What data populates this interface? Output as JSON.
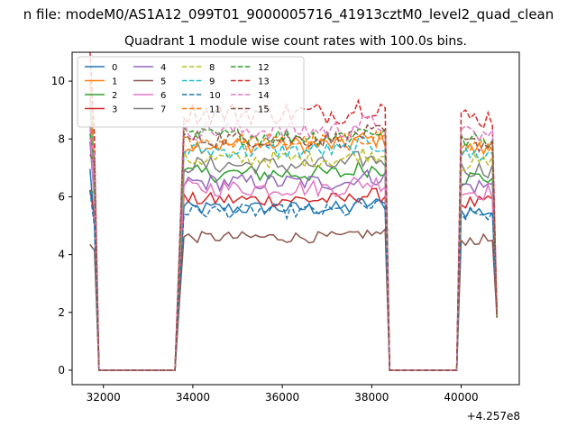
{
  "chart_data": {
    "type": "line",
    "suptitle": "n file: modeM0/AS1A12_099T01_9000005716_41913cztM0_level2_quad_clean",
    "title": "Quadrant 1 module wise count rates with 100.0s bins.",
    "xlabel": "",
    "ylabel": "",
    "x_offset_label": "+4.257e8",
    "xlim": [
      31300,
      41300
    ],
    "ylim": [
      -0.5,
      11
    ],
    "x_ticks": [
      32000,
      34000,
      36000,
      38000,
      40000
    ],
    "y_ticks": [
      0,
      2,
      4,
      6,
      8,
      10
    ],
    "x_tick_labels": [
      "32000",
      "34000",
      "36000",
      "38000",
      "40000"
    ],
    "y_tick_labels": [
      "0",
      "2",
      "4",
      "6",
      "8",
      "10"
    ],
    "grid": false,
    "legend_position": "upper-left",
    "legend_columns": 4,
    "segments": [
      {
        "x_start": 31700,
        "x_end": 31900,
        "profile": [
          1.0,
          0.88,
          0.0
        ]
      },
      {
        "x_start": 31900,
        "x_end": 33500,
        "profile": []
      },
      {
        "x_start": 33600,
        "x_end": 38400,
        "profile": []
      },
      {
        "x_start": 38500,
        "x_end": 39800,
        "profile": []
      },
      {
        "x_start": 39900,
        "x_end": 40800,
        "profile": []
      }
    ],
    "series": [
      {
        "name": "0",
        "color": "#1f77b4",
        "dashed": false,
        "level": 5.6,
        "noise": 0.25
      },
      {
        "name": "1",
        "color": "#ff7f0e",
        "dashed": false,
        "level": 7.8,
        "noise": 0.3
      },
      {
        "name": "2",
        "color": "#2ca02c",
        "dashed": false,
        "level": 6.8,
        "noise": 0.3
      },
      {
        "name": "3",
        "color": "#d62728",
        "dashed": false,
        "level": 5.9,
        "noise": 0.25
      },
      {
        "name": "4",
        "color": "#9467bd",
        "dashed": false,
        "level": 6.5,
        "noise": 0.3
      },
      {
        "name": "5",
        "color": "#8c564b",
        "dashed": false,
        "level": 4.6,
        "noise": 0.2
      },
      {
        "name": "6",
        "color": "#e377c2",
        "dashed": false,
        "level": 6.3,
        "noise": 0.3
      },
      {
        "name": "7",
        "color": "#7f7f7f",
        "dashed": false,
        "level": 7.1,
        "noise": 0.3
      },
      {
        "name": "8",
        "color": "#bcbd22",
        "dashed": true,
        "level": 7.3,
        "noise": 0.3
      },
      {
        "name": "9",
        "color": "#17becf",
        "dashed": true,
        "level": 7.6,
        "noise": 0.3
      },
      {
        "name": "10",
        "color": "#1f77b4",
        "dashed": true,
        "level": 5.5,
        "noise": 0.25
      },
      {
        "name": "11",
        "color": "#ff7f0e",
        "dashed": true,
        "level": 7.9,
        "noise": 0.3
      },
      {
        "name": "12",
        "color": "#2ca02c",
        "dashed": true,
        "level": 8.1,
        "noise": 0.3
      },
      {
        "name": "13",
        "color": "#d62728",
        "dashed": true,
        "level": 8.9,
        "noise": 0.4
      },
      {
        "name": "14",
        "color": "#e377c2",
        "dashed": true,
        "level": 8.3,
        "noise": 0.35
      },
      {
        "name": "15",
        "color": "#8c564b",
        "dashed": true,
        "level": 8.0,
        "noise": 0.3
      }
    ]
  }
}
